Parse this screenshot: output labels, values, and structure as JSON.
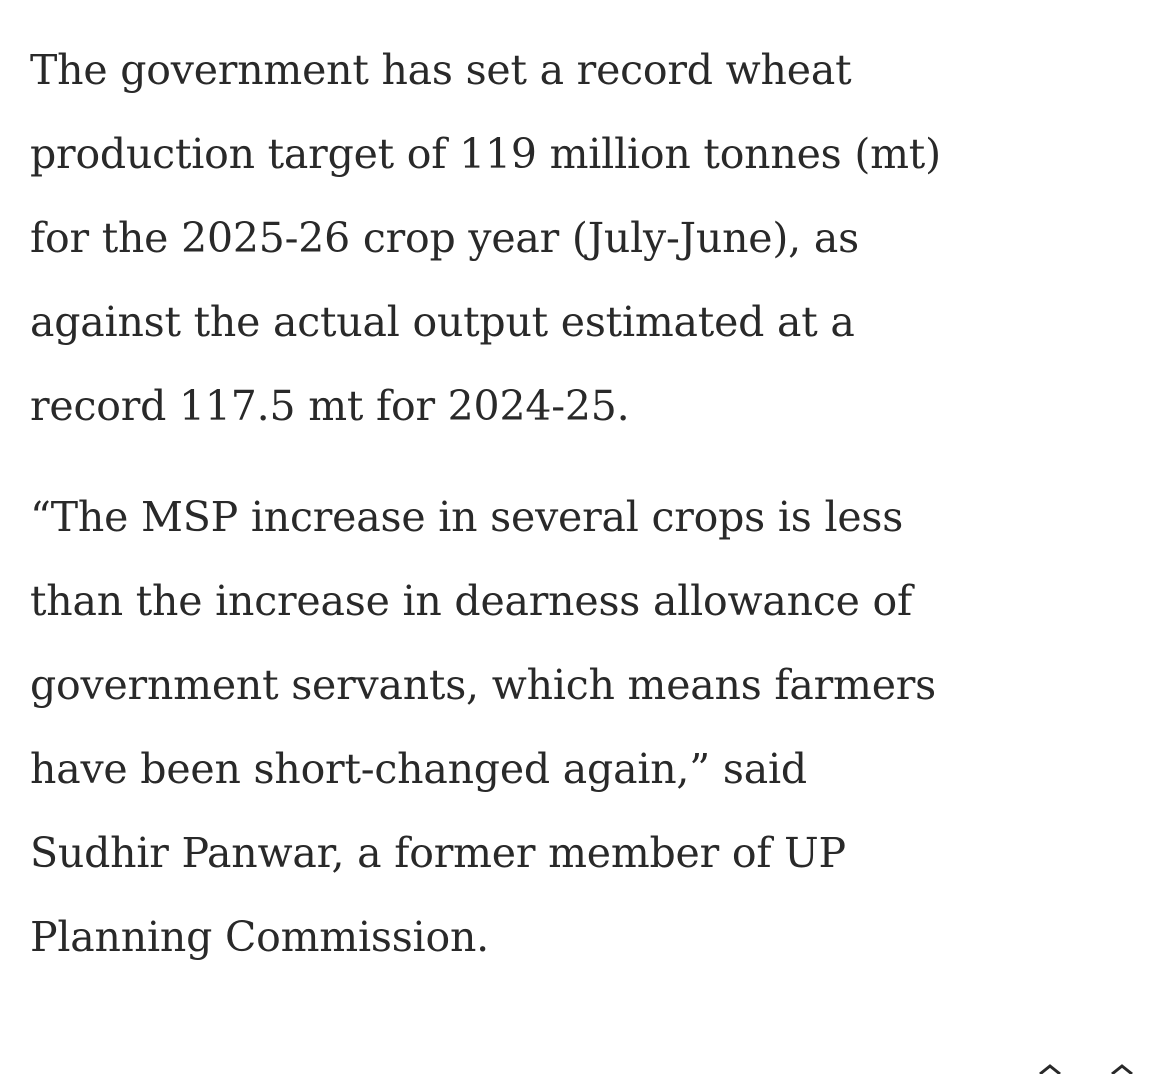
{
  "paragraphs": [
    {
      "lines": [
        "The government has set a record wheat",
        "production target of 119 million tonnes (mt)",
        "for the 2025-26 crop year (July-June), as",
        "against the actual output estimated at a",
        "record 117.5 mt for 2024-25."
      ]
    },
    {
      "lines": [
        "“The MSP increase in several crops is less",
        "than the increase in dearness allowance of",
        "government servants, which means farmers",
        "have been short-changed again,” said",
        "Sudhir Panwar, a former member of UP",
        "Planning Commission."
      ]
    }
  ]
}
